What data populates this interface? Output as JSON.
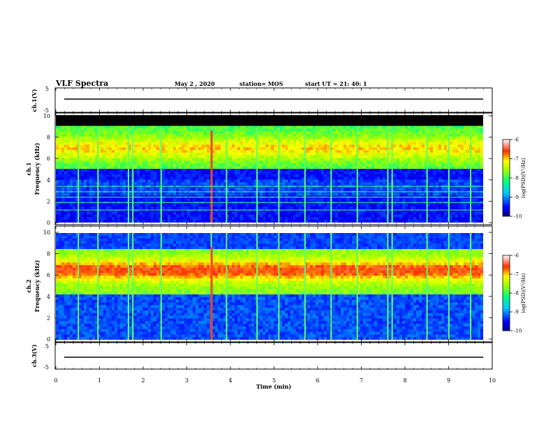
{
  "header": {
    "title": "VLF Spectra",
    "date": "May 2  , 2020",
    "station": "station= MOS",
    "start": "start  UT  =   21: 40: 1"
  },
  "chart_data": [
    {
      "type": "line",
      "name": "ch1-waveform",
      "ylabel": "ch.1(V)",
      "ylim": [
        -5,
        5
      ],
      "yticks": [
        "5",
        "-5"
      ],
      "x": [
        0,
        10
      ],
      "values": [
        0,
        0
      ]
    },
    {
      "type": "heatmap",
      "name": "ch1-spectrogram",
      "ylabel_top": "ch.1",
      "ylabel": "Frequency  (kHz)",
      "ylim": [
        0,
        10
      ],
      "yticks": [
        "0",
        "2",
        "4",
        "6",
        "8",
        "10"
      ],
      "colorbar": {
        "label": "log(PSD)(V²/Hz)",
        "range": [
          -10,
          -6
        ],
        "ticks": [
          "-6",
          "-7",
          "-8",
          "-9",
          "-10"
        ]
      }
    },
    {
      "type": "heatmap",
      "name": "ch2-spectrogram",
      "ylabel_top": "ch.2",
      "ylabel": "Frequency  (kHz)",
      "ylim": [
        0,
        10
      ],
      "yticks": [
        "0",
        "2",
        "4",
        "6",
        "8",
        "10"
      ],
      "colorbar": {
        "label": "log(PSD)(V²/Hz)",
        "range": [
          -10,
          -6
        ],
        "ticks": [
          "-6",
          "-7",
          "-8",
          "-9",
          "-10"
        ]
      }
    },
    {
      "type": "line",
      "name": "ch3-waveform",
      "ylabel": "ch.3(V)",
      "ylim": [
        -5,
        5
      ],
      "yticks": [
        "5",
        "-5"
      ],
      "x": [
        0,
        10
      ],
      "values": [
        0,
        0
      ]
    }
  ],
  "xaxis": {
    "label": "Time  (min)",
    "range": [
      0,
      10
    ],
    "ticks": [
      "0",
      "1",
      "2",
      "3",
      "4",
      "5",
      "6",
      "7",
      "8",
      "9",
      "10"
    ]
  }
}
